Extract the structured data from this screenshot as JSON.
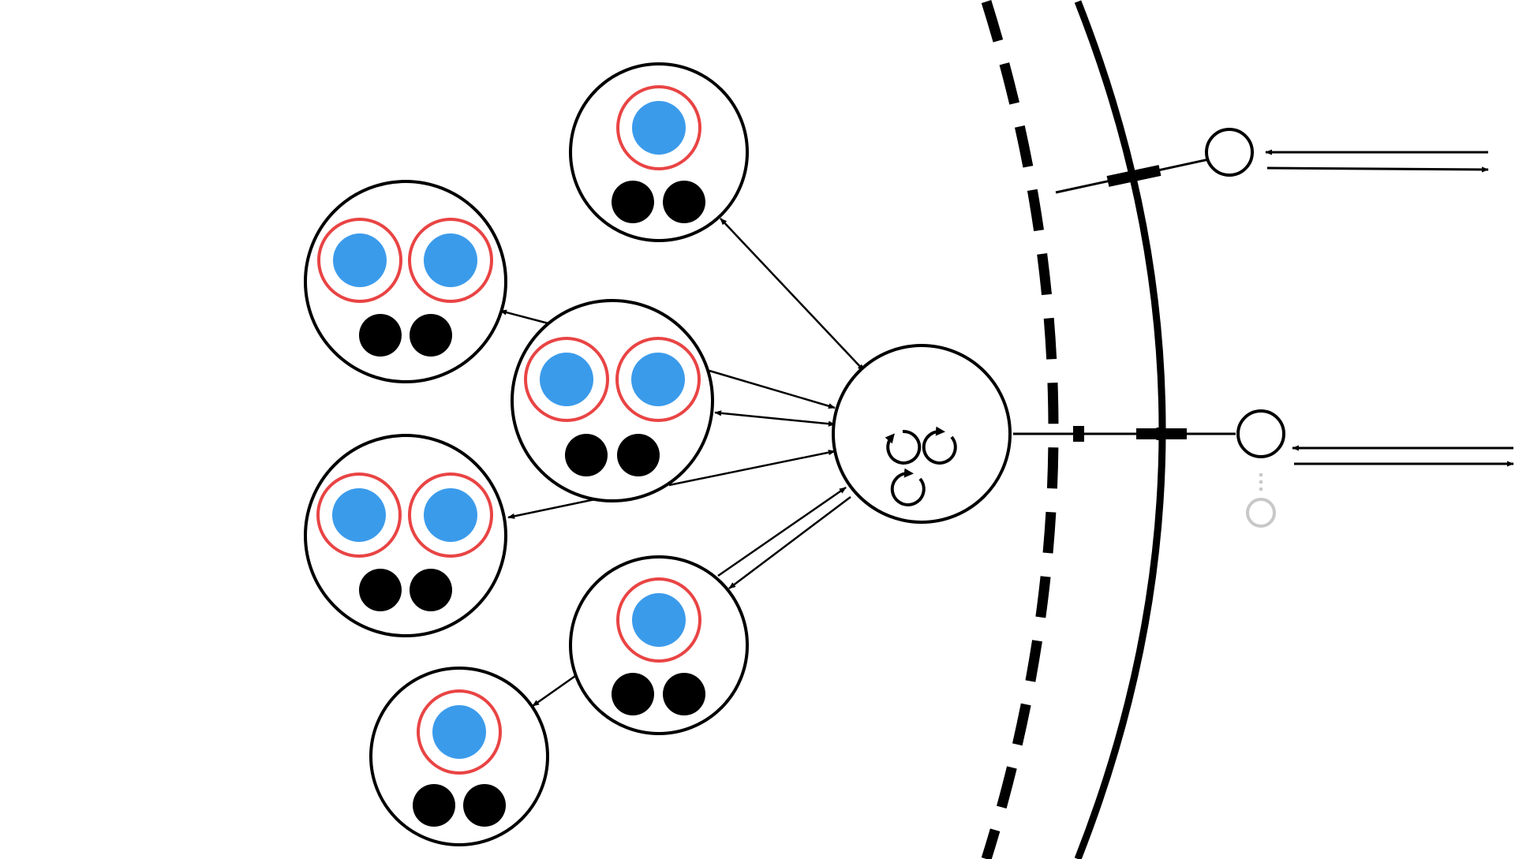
{
  "colors": {
    "stroke": "#000000",
    "blue_core": "#3b9beb",
    "red_ring": "#e94444",
    "black_dot": "#000000",
    "faded": "#c8c8c8",
    "background": "#ffffff"
  },
  "diagram": {
    "node_count": 9,
    "external_ports": [
      {
        "id": "port-top",
        "bidirectional": true
      },
      {
        "id": "port-middle",
        "bidirectional": true
      },
      {
        "id": "port-faded",
        "bidirectional": false
      }
    ],
    "boundaries": [
      {
        "id": "dashed-boundary",
        "style": "dashed"
      },
      {
        "id": "solid-boundary",
        "style": "solid"
      }
    ],
    "hub": {
      "id": "hub-node",
      "icon": "cycle-icons",
      "cycle_count": 3
    },
    "clusters": [
      {
        "id": "cluster-top",
        "blue_units": 1,
        "black_dots": 2
      },
      {
        "id": "cluster-upper-left",
        "blue_units": 2,
        "black_dots": 2
      },
      {
        "id": "cluster-center",
        "blue_units": 2,
        "black_dots": 2
      },
      {
        "id": "cluster-lower-left",
        "blue_units": 2,
        "black_dots": 2
      },
      {
        "id": "cluster-lower-mid",
        "blue_units": 1,
        "black_dots": 2
      },
      {
        "id": "cluster-bottom",
        "blue_units": 1,
        "black_dots": 2
      }
    ]
  }
}
